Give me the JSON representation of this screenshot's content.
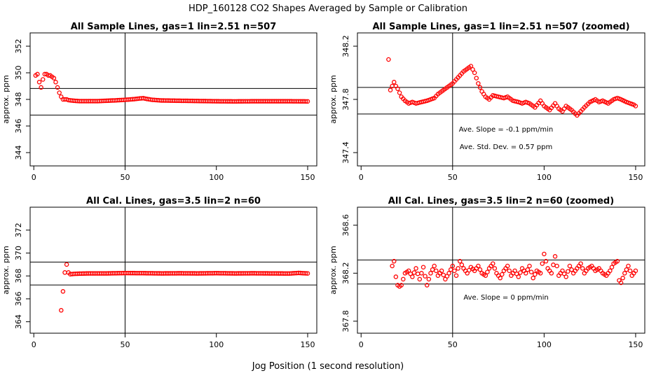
{
  "figure": {
    "title": "HDP_160128  CO2 Shapes Averaged by Sample or Calibration",
    "xlabel": "Jog Position (1 second resolution)"
  },
  "colors": {
    "points": "#ff0000",
    "axes": "#000000"
  },
  "chart_data": [
    {
      "type": "scatter",
      "title": "All Sample Lines, gas=1 lin=2.51 n=507",
      "ylabel": "approx. ppm",
      "xlim": [
        -2,
        155
      ],
      "ylim": [
        343,
        353
      ],
      "xticks": [
        "0",
        "50",
        "100",
        "150"
      ],
      "yticks": [
        "344",
        "346",
        "348",
        "350",
        "352"
      ],
      "hlines": [
        348.82,
        346.82
      ],
      "vline": 50,
      "annotations": [],
      "series": [
        {
          "x_start": 1,
          "x_end": 150,
          "points": [
            [
              1,
              349.8
            ],
            [
              2,
              349.9
            ],
            [
              3,
              349.3
            ],
            [
              4,
              348.9
            ],
            [
              5,
              349.5
            ],
            [
              6,
              349.9
            ],
            [
              7,
              349.9
            ],
            [
              8,
              349.8
            ],
            [
              9,
              349.8
            ],
            [
              10,
              349.7
            ],
            [
              11,
              349.6
            ],
            [
              12,
              349.3
            ],
            [
              13,
              348.9
            ],
            [
              14,
              348.5
            ],
            [
              15,
              348.2
            ],
            [
              16,
              348.0
            ],
            [
              17,
              348.0
            ],
            [
              18,
              348.0
            ],
            [
              19,
              347.95
            ],
            [
              20,
              347.93
            ],
            [
              22,
              347.9
            ],
            [
              25,
              347.87
            ],
            [
              30,
              347.87
            ],
            [
              35,
              347.87
            ],
            [
              40,
              347.9
            ],
            [
              45,
              347.93
            ],
            [
              50,
              347.97
            ],
            [
              55,
              348.02
            ],
            [
              58,
              348.07
            ],
            [
              60,
              348.09
            ],
            [
              62,
              348.03
            ],
            [
              65,
              347.97
            ],
            [
              70,
              347.92
            ],
            [
              80,
              347.9
            ],
            [
              90,
              347.88
            ],
            [
              100,
              347.86
            ],
            [
              110,
              347.85
            ],
            [
              120,
              347.86
            ],
            [
              130,
              347.86
            ],
            [
              140,
              347.86
            ],
            [
              150,
              347.85
            ]
          ]
        }
      ]
    },
    {
      "type": "scatter",
      "title": "All Sample Lines, gas=1 lin=2.51 n=507 (zoomed)",
      "ylabel": "approx. ppm",
      "xlim": [
        -2,
        155
      ],
      "ylim": [
        347.3,
        348.3
      ],
      "xticks": [
        "0",
        "50",
        "100",
        "150"
      ],
      "yticks": [
        "347.4",
        "347.8",
        "348.2"
      ],
      "hlines": [
        347.89,
        347.69
      ],
      "vline": 50,
      "annotations": [
        "Ave. Slope =  -0.1  ppm/min",
        "Ave. Std. Dev. =  0.57  ppm"
      ],
      "series": [
        {
          "x_start": 15,
          "x_end": 150,
          "points": [
            [
              15,
              348.1
            ],
            [
              16,
              347.87
            ],
            [
              17,
              347.9
            ],
            [
              18,
              347.93
            ],
            [
              19,
              347.9
            ],
            [
              20,
              347.88
            ],
            [
              22,
              347.82
            ],
            [
              24,
              347.79
            ],
            [
              26,
              347.77
            ],
            [
              28,
              347.78
            ],
            [
              30,
              347.77
            ],
            [
              33,
              347.78
            ],
            [
              36,
              347.79
            ],
            [
              38,
              347.8
            ],
            [
              40,
              347.81
            ],
            [
              42,
              347.84
            ],
            [
              44,
              347.86
            ],
            [
              46,
              347.88
            ],
            [
              48,
              347.9
            ],
            [
              50,
              347.92
            ],
            [
              52,
              347.95
            ],
            [
              54,
              347.98
            ],
            [
              56,
              348.01
            ],
            [
              58,
              348.03
            ],
            [
              60,
              348.05
            ],
            [
              62,
              348.0
            ],
            [
              64,
              347.92
            ],
            [
              66,
              347.86
            ],
            [
              68,
              347.82
            ],
            [
              70,
              347.8
            ],
            [
              72,
              347.83
            ],
            [
              75,
              347.82
            ],
            [
              78,
              347.81
            ],
            [
              80,
              347.82
            ],
            [
              83,
              347.79
            ],
            [
              86,
              347.78
            ],
            [
              88,
              347.77
            ],
            [
              90,
              347.78
            ],
            [
              92,
              347.77
            ],
            [
              95,
              347.74
            ],
            [
              98,
              347.79
            ],
            [
              100,
              347.75
            ],
            [
              103,
              347.72
            ],
            [
              106,
              347.77
            ],
            [
              108,
              347.73
            ],
            [
              110,
              347.71
            ],
            [
              112,
              347.75
            ],
            [
              115,
              347.72
            ],
            [
              118,
              347.68
            ],
            [
              120,
              347.71
            ],
            [
              122,
              347.74
            ],
            [
              125,
              347.78
            ],
            [
              128,
              347.8
            ],
            [
              130,
              347.78
            ],
            [
              132,
              347.79
            ],
            [
              135,
              347.77
            ],
            [
              138,
              347.8
            ],
            [
              140,
              347.81
            ],
            [
              142,
              347.8
            ],
            [
              145,
              347.78
            ],
            [
              147,
              347.77
            ],
            [
              149,
              347.76
            ],
            [
              150,
              347.75
            ]
          ]
        }
      ]
    },
    {
      "type": "scatter",
      "title": "All Cal. Lines, gas=3.5 lin=2 n=60",
      "ylabel": "approx. ppm",
      "xlim": [
        -2,
        155
      ],
      "ylim": [
        363,
        374
      ],
      "xticks": [
        "0",
        "50",
        "100",
        "150"
      ],
      "yticks": [
        "364",
        "366",
        "368",
        "370",
        "372"
      ],
      "hlines": [
        369.21,
        367.21
      ],
      "vline": 50,
      "annotations": [],
      "series": [
        {
          "x_start": 15,
          "x_end": 150,
          "points": [
            [
              15,
              365.0
            ],
            [
              17,
              368.3
            ],
            [
              18,
              369.0
            ],
            [
              19,
              368.3
            ],
            [
              20,
              368.15
            ],
            [
              22,
              368.18
            ],
            [
              25,
              368.2
            ],
            [
              30,
              368.22
            ],
            [
              40,
              368.22
            ],
            [
              50,
              368.25
            ],
            [
              60,
              368.24
            ],
            [
              70,
              368.22
            ],
            [
              80,
              368.23
            ],
            [
              90,
              368.22
            ],
            [
              100,
              368.24
            ],
            [
              110,
              368.22
            ],
            [
              120,
              368.23
            ],
            [
              130,
              368.22
            ],
            [
              140,
              368.21
            ],
            [
              145,
              368.26
            ],
            [
              150,
              368.22
            ]
          ]
        }
      ]
    },
    {
      "type": "scatter",
      "title": "All Cal. Lines, gas=3.5 lin=2 n=60 (zoomed)",
      "ylabel": "approx. ppm",
      "xlim": [
        -2,
        155
      ],
      "ylim": [
        367.7,
        368.75
      ],
      "xticks": [
        "0",
        "50",
        "100",
        "150"
      ],
      "yticks": [
        "367.8",
        "368.2",
        "368.6"
      ],
      "hlines": [
        368.31,
        368.11
      ],
      "vline": 50,
      "annotations": [
        "Ave. Slope =  0  ppm/min"
      ],
      "series": [
        {
          "x_start": 17,
          "x_end": 150,
          "points": [
            [
              17,
              368.26
            ],
            [
              18,
              368.3
            ],
            [
              19,
              368.17
            ],
            [
              20,
              368.1
            ],
            [
              21,
              368.09
            ],
            [
              22,
              368.1
            ],
            [
              24,
              368.2
            ],
            [
              26,
              368.22
            ],
            [
              28,
              368.17
            ],
            [
              30,
              368.24
            ],
            [
              32,
              368.15
            ],
            [
              34,
              368.25
            ],
            [
              36,
              368.1
            ],
            [
              38,
              368.2
            ],
            [
              40,
              368.26
            ],
            [
              42,
              368.18
            ],
            [
              44,
              368.22
            ],
            [
              46,
              368.15
            ],
            [
              48,
              368.2
            ],
            [
              50,
              368.26
            ],
            [
              52,
              368.18
            ],
            [
              54,
              368.3
            ],
            [
              56,
              368.24
            ],
            [
              58,
              368.2
            ],
            [
              60,
              368.25
            ],
            [
              62,
              368.22
            ],
            [
              64,
              368.26
            ],
            [
              66,
              368.2
            ],
            [
              68,
              368.18
            ],
            [
              70,
              368.24
            ],
            [
              72,
              368.28
            ],
            [
              74,
              368.2
            ],
            [
              76,
              368.16
            ],
            [
              78,
              368.22
            ],
            [
              80,
              368.26
            ],
            [
              82,
              368.18
            ],
            [
              84,
              368.22
            ],
            [
              86,
              368.17
            ],
            [
              88,
              368.24
            ],
            [
              90,
              368.2
            ],
            [
              92,
              368.26
            ],
            [
              94,
              368.16
            ],
            [
              96,
              368.22
            ],
            [
              98,
              368.2
            ],
            [
              100,
              368.36
            ],
            [
              102,
              368.24
            ],
            [
              104,
              368.2
            ],
            [
              106,
              368.34
            ],
            [
              108,
              368.18
            ],
            [
              110,
              368.22
            ],
            [
              112,
              368.17
            ],
            [
              114,
              368.26
            ],
            [
              116,
              368.2
            ],
            [
              118,
              368.24
            ],
            [
              120,
              368.28
            ],
            [
              122,
              368.2
            ],
            [
              124,
              368.24
            ],
            [
              126,
              368.26
            ],
            [
              128,
              368.22
            ],
            [
              130,
              368.24
            ],
            [
              132,
              368.2
            ],
            [
              134,
              368.18
            ],
            [
              136,
              368.22
            ],
            [
              138,
              368.28
            ],
            [
              140,
              368.3
            ],
            [
              141,
              368.14
            ],
            [
              142,
              368.12
            ],
            [
              144,
              368.2
            ],
            [
              146,
              368.26
            ],
            [
              148,
              368.18
            ],
            [
              150,
              368.22
            ]
          ]
        }
      ]
    }
  ]
}
